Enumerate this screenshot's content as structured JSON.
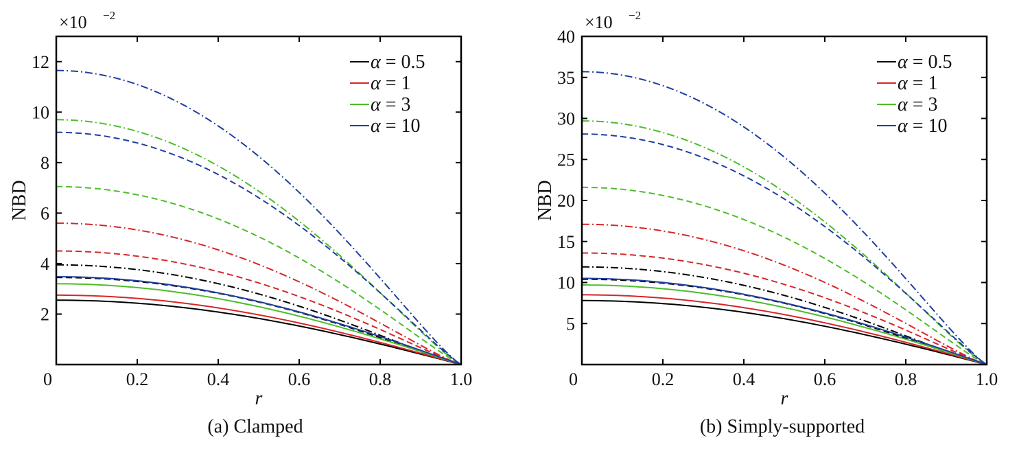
{
  "chart_data": [
    {
      "type": "line",
      "caption": "(a) Clamped",
      "xlabel": "r",
      "ylabel": "NBD",
      "y_multiplier": "×10",
      "y_multiplier_exp": "−2",
      "xlim": [
        0,
        1.0
      ],
      "ylim": [
        0,
        13
      ],
      "xticks": [
        "0",
        "0.2",
        "0.4",
        "0.6",
        "0.8",
        "1.0"
      ],
      "xtick_values": [
        0,
        0.2,
        0.4,
        0.6,
        0.8,
        1.0
      ],
      "yticks": [
        "2",
        "4",
        "6",
        "8",
        "10",
        "12"
      ],
      "ytick_values": [
        2,
        4,
        6,
        8,
        10,
        12
      ],
      "legend_position": "top-right",
      "legend": [
        {
          "symbol": "α",
          "eq": "=",
          "value": "0.5",
          "color": "#000000"
        },
        {
          "symbol": "α",
          "eq": "=",
          "value": "1",
          "color": "#d62728"
        },
        {
          "symbol": "α",
          "eq": "=",
          "value": "3",
          "color": "#4dbd2a"
        },
        {
          "symbol": "α",
          "eq": "=",
          "value": "10",
          "color": "#1f3f9f"
        }
      ],
      "series": [
        {
          "alpha": "0.5",
          "style": "solid",
          "color": "#000000",
          "y0": 2.55
        },
        {
          "alpha": "0.5",
          "style": "dashed",
          "color": "#000000",
          "y0": 3.45
        },
        {
          "alpha": "0.5",
          "style": "dashdot",
          "color": "#000000",
          "y0": 3.95
        },
        {
          "alpha": "1",
          "style": "solid",
          "color": "#d62728",
          "y0": 2.75
        },
        {
          "alpha": "1",
          "style": "dashed",
          "color": "#d62728",
          "y0": 4.5
        },
        {
          "alpha": "1",
          "style": "dashdot",
          "color": "#d62728",
          "y0": 5.6
        },
        {
          "alpha": "3",
          "style": "solid",
          "color": "#4dbd2a",
          "y0": 3.2
        },
        {
          "alpha": "3",
          "style": "dashed",
          "color": "#4dbd2a",
          "y0": 7.05
        },
        {
          "alpha": "3",
          "style": "dashdot",
          "color": "#4dbd2a",
          "y0": 9.7
        },
        {
          "alpha": "10",
          "style": "solid",
          "color": "#1f3f9f",
          "y0": 3.48
        },
        {
          "alpha": "10",
          "style": "dashed",
          "color": "#1f3f9f",
          "y0": 9.2
        },
        {
          "alpha": "10",
          "style": "dashdot",
          "color": "#1f3f9f",
          "y0": 11.65
        }
      ]
    },
    {
      "type": "line",
      "caption": "(b) Simply-supported",
      "xlabel": "r",
      "ylabel": "NBD",
      "y_multiplier": "×10",
      "y_multiplier_exp": "−2",
      "xlim": [
        0,
        1.0
      ],
      "ylim": [
        0,
        40
      ],
      "xticks": [
        "0",
        "0.2",
        "0.4",
        "0.6",
        "0.8",
        "1.0"
      ],
      "xtick_values": [
        0,
        0.2,
        0.4,
        0.6,
        0.8,
        1.0
      ],
      "yticks": [
        "5",
        "10",
        "15",
        "20",
        "25",
        "30",
        "35",
        "40"
      ],
      "ytick_values": [
        5,
        10,
        15,
        20,
        25,
        30,
        35,
        40
      ],
      "legend_position": "top-right",
      "legend": [
        {
          "symbol": "α",
          "eq": "=",
          "value": "0.5",
          "color": "#000000"
        },
        {
          "symbol": "α",
          "eq": "=",
          "value": "1",
          "color": "#d62728"
        },
        {
          "symbol": "α",
          "eq": "=",
          "value": "3",
          "color": "#4dbd2a"
        },
        {
          "symbol": "α",
          "eq": "=",
          "value": "10",
          "color": "#1f3f9f"
        }
      ],
      "series": [
        {
          "alpha": "0.5",
          "style": "solid",
          "color": "#000000",
          "y0": 7.8
        },
        {
          "alpha": "0.5",
          "style": "dashed",
          "color": "#000000",
          "y0": 10.4
        },
        {
          "alpha": "0.5",
          "style": "dashdot",
          "color": "#000000",
          "y0": 11.9
        },
        {
          "alpha": "1",
          "style": "solid",
          "color": "#d62728",
          "y0": 8.5
        },
        {
          "alpha": "1",
          "style": "dashed",
          "color": "#d62728",
          "y0": 13.6
        },
        {
          "alpha": "1",
          "style": "dashdot",
          "color": "#d62728",
          "y0": 17.1
        },
        {
          "alpha": "3",
          "style": "solid",
          "color": "#4dbd2a",
          "y0": 9.7
        },
        {
          "alpha": "3",
          "style": "dashed",
          "color": "#4dbd2a",
          "y0": 21.6
        },
        {
          "alpha": "3",
          "style": "dashdot",
          "color": "#4dbd2a",
          "y0": 29.7
        },
        {
          "alpha": "10",
          "style": "solid",
          "color": "#1f3f9f",
          "y0": 10.5
        },
        {
          "alpha": "10",
          "style": "dashed",
          "color": "#1f3f9f",
          "y0": 28.1
        },
        {
          "alpha": "10",
          "style": "dashdot",
          "color": "#1f3f9f",
          "y0": 35.7
        }
      ]
    }
  ]
}
